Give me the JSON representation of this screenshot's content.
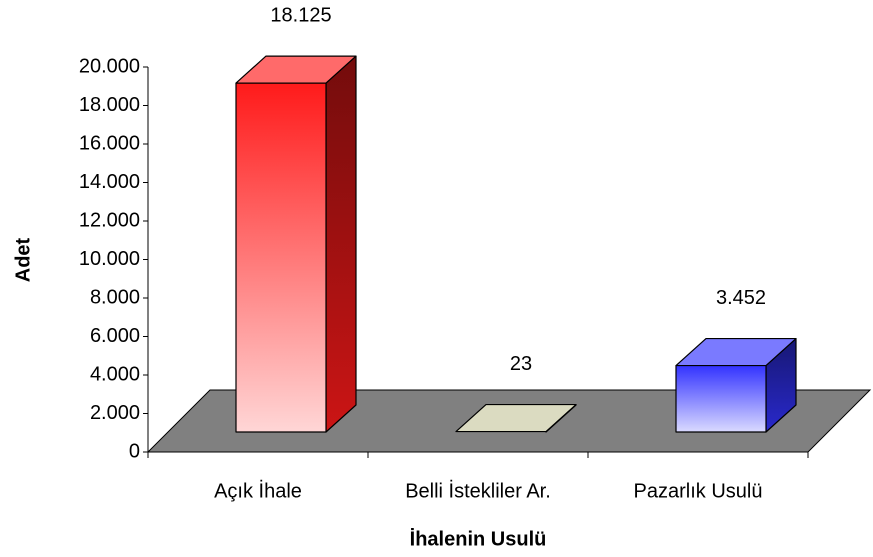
{
  "chart_data": {
    "type": "bar3d",
    "categories": [
      "Açık İhale",
      "Belli İstekliler Ar.",
      "Pazarlık Usulü"
    ],
    "values": [
      18125,
      23,
      3452
    ],
    "value_labels": [
      "18.125",
      "23",
      "3.452"
    ],
    "colors": [
      "#ff1a1a",
      "#c8c8a0",
      "#3333ff"
    ],
    "y_label": "Adet",
    "x_label": "İhalenin Usulü",
    "ylim": [
      0,
      20000
    ],
    "yticks": [
      0,
      {
        "value": 2000,
        "label": "2.000"
      },
      {
        "value": 4000,
        "label": "4.000"
      },
      {
        "value": 6000,
        "label": "6.000"
      },
      {
        "value": 8000,
        "label": "8.000"
      },
      {
        "value": 10000,
        "label": "10.000"
      },
      {
        "value": 12000,
        "label": "12.000"
      },
      {
        "value": 14000,
        "label": "14.000"
      },
      {
        "value": 16000,
        "label": "16.000"
      },
      {
        "value": 18000,
        "label": "18.000"
      },
      {
        "value": 20000,
        "label": "20.000"
      }
    ]
  }
}
